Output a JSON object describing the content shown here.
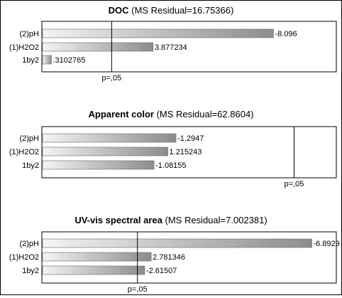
{
  "chart_data": [
    {
      "type": "bar",
      "orientation": "horizontal",
      "title": "DOC",
      "subtitle": "(MS Residual=16.75366)",
      "categories": [
        "(2)pH",
        "(1)H2O2",
        "1by2"
      ],
      "values": [
        -8.096,
        3.877234,
        0.3102765
      ],
      "value_labels": [
        "-8.096",
        "3.877234",
        ".3102765"
      ],
      "reference_line": {
        "label": "p=,05",
        "value": 2.447
      },
      "xlim": [
        0,
        10.3
      ]
    },
    {
      "type": "bar",
      "orientation": "horizontal",
      "title": "Apparent color",
      "subtitle": "(MS Residual=62.8604)",
      "categories": [
        "(2)pH",
        "(1)H2O2",
        "1by2"
      ],
      "values": [
        -1.2947,
        1.215243,
        -1.08155
      ],
      "value_labels": [
        "-1.2947",
        "1.215243",
        "-1.08155"
      ],
      "reference_line": {
        "label": "p=,05",
        "value": 2.447
      },
      "xlim": [
        0,
        2.85
      ]
    },
    {
      "type": "bar",
      "orientation": "horizontal",
      "title": "UV-vis spectral area",
      "subtitle": "(MS Residual=7.002381)",
      "categories": [
        "(2)pH",
        "(1)H2O2",
        "1by2"
      ],
      "values": [
        -6.8929,
        2.781346,
        -2.61507
      ],
      "value_labels": [
        "-6.8929",
        "2.781346",
        "-2.61507"
      ],
      "reference_line": {
        "label": "p=,05",
        "value": 2.447
      },
      "xlim": [
        0,
        7.52
      ]
    }
  ]
}
